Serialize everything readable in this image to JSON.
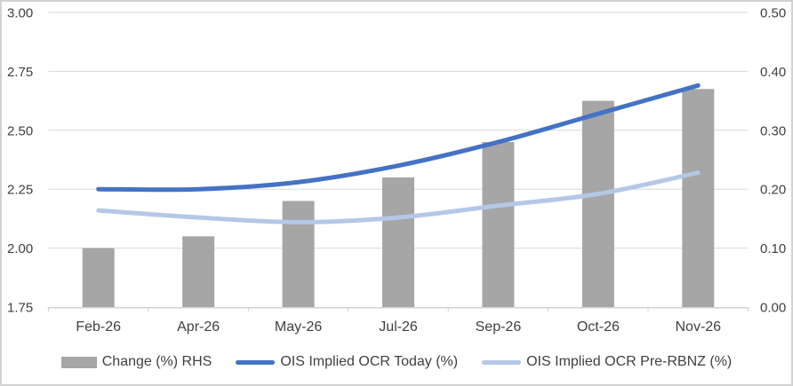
{
  "chart_data": {
    "type": "combo",
    "title": "",
    "categories": [
      "Feb-26",
      "Apr-26",
      "May-26",
      "Jul-26",
      "Sep-26",
      "Oct-26",
      "Nov-26"
    ],
    "series": [
      {
        "name": "Change (%) RHS",
        "type": "bar",
        "axis": "right",
        "color": "#A6A6A6",
        "values": [
          0.1,
          0.12,
          0.18,
          0.22,
          0.28,
          0.35,
          0.37
        ]
      },
      {
        "name": "OIS Implied OCR Today (%)",
        "type": "line",
        "axis": "left",
        "color": "#4472C4",
        "values": [
          2.25,
          2.25,
          2.28,
          2.35,
          2.45,
          2.57,
          2.69
        ]
      },
      {
        "name": "OIS Implied OCR Pre-RBNZ (%)",
        "type": "line",
        "axis": "left",
        "color": "#B4C7E7",
        "values": [
          2.16,
          2.13,
          2.11,
          2.13,
          2.18,
          2.23,
          2.32
        ]
      }
    ],
    "left_axis": {
      "min": 1.75,
      "max": 3.0,
      "tick_step": 0.25,
      "ticks": [
        "3.00",
        "2.75",
        "2.50",
        "2.25",
        "2.00",
        "1.75"
      ]
    },
    "right_axis": {
      "min": 0.0,
      "max": 0.5,
      "tick_step": 0.1,
      "ticks": [
        "0.50",
        "0.40",
        "0.30",
        "0.20",
        "0.10",
        "0.00"
      ]
    },
    "grid": true,
    "legend_position": "bottom",
    "colors": {
      "gridline": "#D9D9D9",
      "axis_line": "#D2D2D2",
      "tick_label": "#404040",
      "background": "#FFFFFF",
      "border": "#D2D2D2"
    }
  }
}
